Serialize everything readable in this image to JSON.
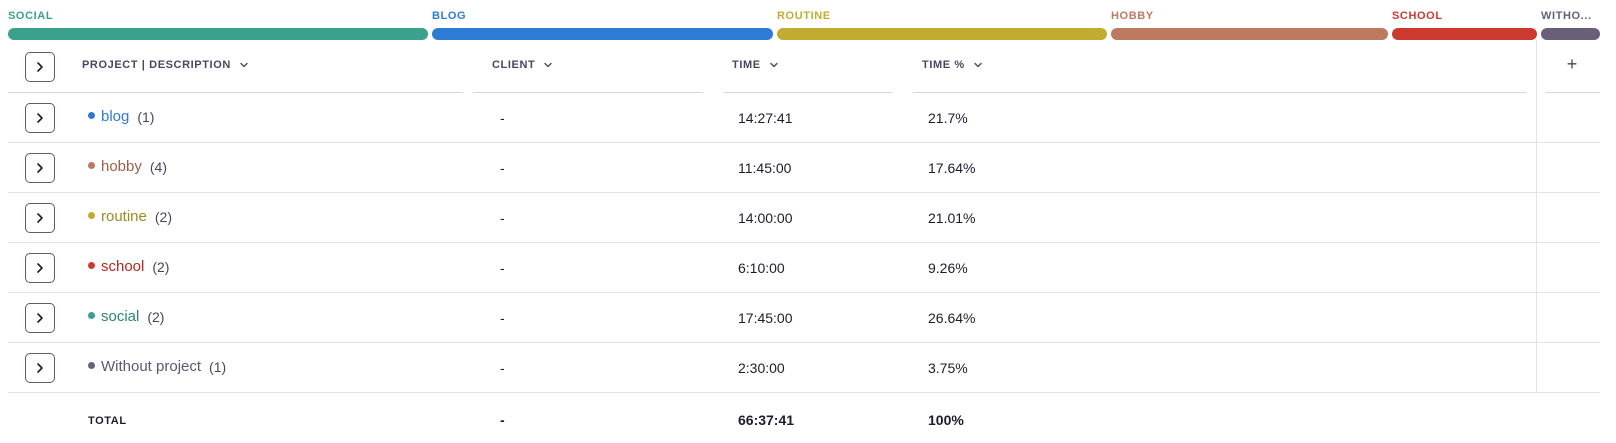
{
  "distribution": [
    {
      "label": "SOCIAL",
      "color": "#3ba18c",
      "percent": 26.64
    },
    {
      "label": "BLOG",
      "color": "#2e7bd6",
      "percent": 21.7
    },
    {
      "label": "ROUTINE",
      "color": "#c1ac31",
      "percent": 21.01
    },
    {
      "label": "HOBBY",
      "color": "#bd7a60",
      "percent": 17.64
    },
    {
      "label": "SCHOOL",
      "color": "#cc3a2f",
      "percent": 9.26
    },
    {
      "label": "WITHO...",
      "color": "#6a5f79",
      "percent": 3.75
    }
  ],
  "table": {
    "columns": {
      "project": "PROJECT | DESCRIPTION",
      "client": "CLIENT",
      "time": "TIME",
      "time_percent": "TIME %"
    },
    "add_column_label": "+",
    "rows": [
      {
        "name": "blog",
        "count": "(1)",
        "color": "#2e7bd6",
        "client": "-",
        "time": "14:27:41",
        "time_percent": "21.7%"
      },
      {
        "name": "hobby",
        "count": "(4)",
        "color": "#bd7a60",
        "client": "-",
        "time": "11:45:00",
        "time_percent": "17.64%"
      },
      {
        "name": "routine",
        "count": "(2)",
        "color": "#c1ac31",
        "client": "-",
        "time": "14:00:00",
        "time_percent": "21.01%"
      },
      {
        "name": "school",
        "count": "(2)",
        "color": "#cc3a2f",
        "client": "-",
        "time": "6:10:00",
        "time_percent": "9.26%"
      },
      {
        "name": "social",
        "count": "(2)",
        "color": "#3ba18c",
        "client": "-",
        "time": "17:45:00",
        "time_percent": "26.64%"
      },
      {
        "name": "Without project",
        "count": "(1)",
        "color": "#6a5f79",
        "client": "-",
        "time": "2:30:00",
        "time_percent": "3.75%"
      }
    ],
    "total": {
      "label": "TOTAL",
      "client": "-",
      "time": "66:37:41",
      "time_percent": "100%"
    }
  },
  "icons": {
    "expand": "chevron-right-icon",
    "sort": "chevron-down-icon",
    "add_column": "plus-icon"
  }
}
